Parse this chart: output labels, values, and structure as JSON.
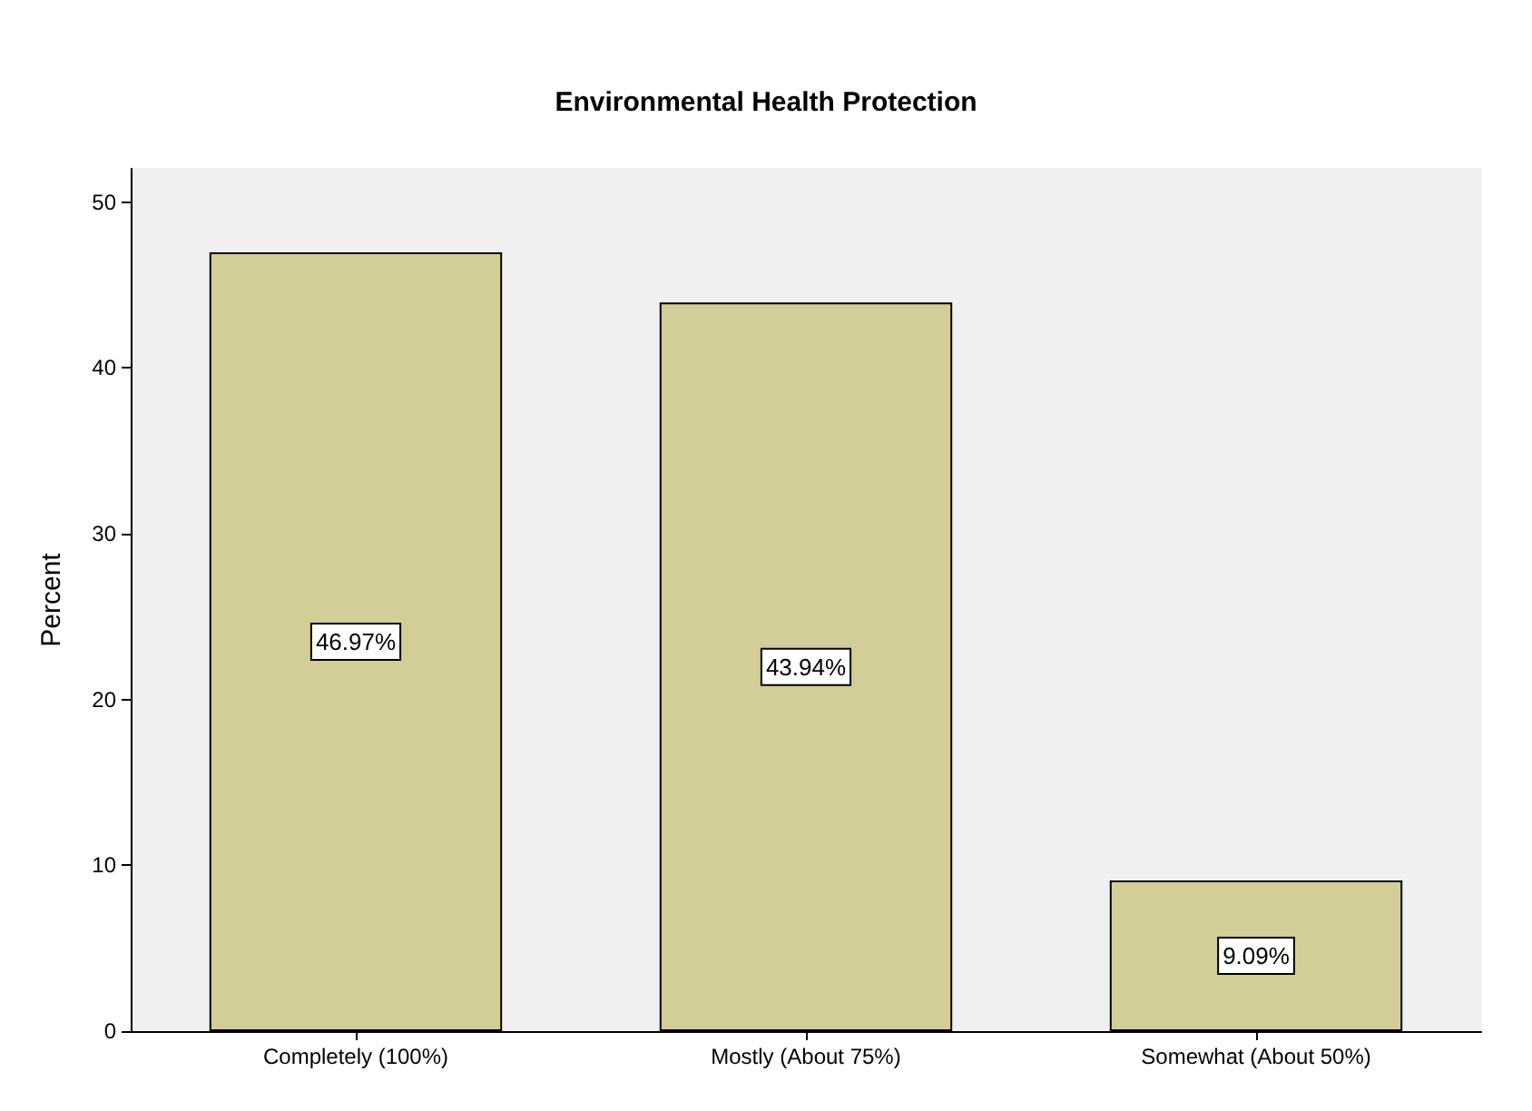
{
  "chart_data": {
    "type": "bar",
    "title": "Environmental Health Protection",
    "ylabel": "Percent",
    "categories": [
      "Completely (100%)",
      "Mostly (About 75%)",
      "Somewhat (About 50%)"
    ],
    "values": [
      46.97,
      43.94,
      9.09
    ],
    "value_labels": [
      "46.97%",
      "43.94%",
      "9.09%"
    ],
    "color": "#d3ce97",
    "ylim": [
      0,
      52
    ],
    "yticks": [
      0,
      10,
      20,
      30,
      40,
      50
    ]
  }
}
